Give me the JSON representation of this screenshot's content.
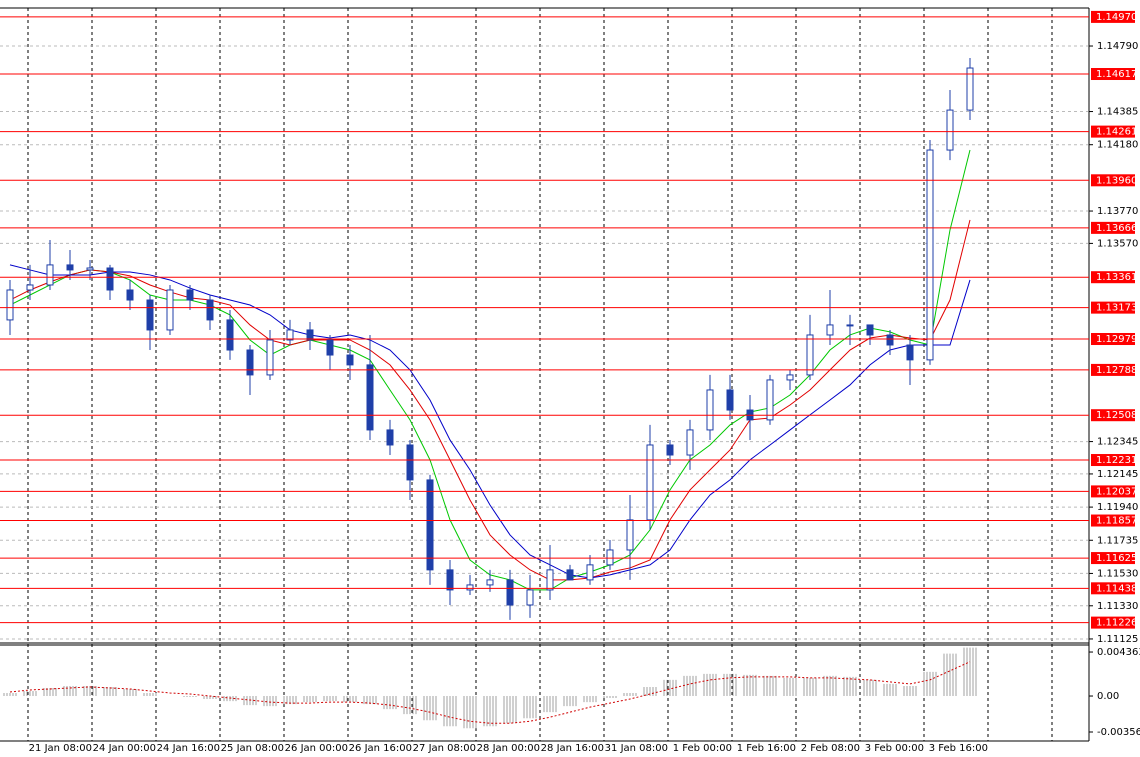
{
  "chart_data": {
    "type": "candlestick",
    "candle_color": "#1f3fa8",
    "ylim": [
      1.111,
      1.15025
    ],
    "yticks": [
      {
        "value": 1.1479,
        "label": "1.14790"
      },
      1.14385,
      {
        "value": 1.1418,
        "label": "1.14180"
      },
      {
        "value": 1.1377,
        "label": "1.13770"
      },
      {
        "value": 1.1357,
        "label": "1.13570"
      },
      1.12345,
      1.12145,
      {
        "value": 1.1194,
        "label": "1.11940"
      },
      1.11735,
      {
        "value": 1.1153,
        "label": "1.11530"
      },
      {
        "value": 1.1133,
        "label": "1.11330"
      },
      1.11125
    ],
    "grid": true,
    "level_color": "#ff0000",
    "levels": [
      {
        "value": 1.1497,
        "label": "1.14970"
      },
      1.14617,
      1.14261,
      {
        "value": 1.1396,
        "label": "1.13960"
      },
      1.13666,
      1.13361,
      1.13173,
      1.12979,
      1.12788,
      1.12508,
      1.12231,
      1.12037,
      1.11857,
      1.11625,
      1.11438,
      1.11226
    ],
    "x_labels": [
      "21 Jan 08:00",
      "24 Jan 00:00",
      "24 Jan 16:00",
      "25 Jan 08:00",
      "26 Jan 00:00",
      "26 Jan 16:00",
      "27 Jan 08:00",
      "28 Jan 00:00",
      "28 Jan 16:00",
      "31 Jan 08:00",
      "1 Feb 00:00",
      "1 Feb 16:00",
      "2 Feb 08:00",
      "3 Feb 00:00",
      "3 Feb 16:00"
    ],
    "ohlc": [
      [
        1.13097,
        1.13344,
        1.13004,
        1.13282
      ],
      [
        1.13282,
        1.13437,
        1.1322,
        1.13313
      ],
      [
        1.13313,
        1.13591,
        1.13282,
        1.13437
      ],
      [
        1.13437,
        1.13529,
        1.13344,
        1.13406
      ],
      [
        1.13406,
        1.13467,
        1.13344,
        1.13418
      ],
      [
        1.13418,
        1.13437,
        1.1322,
        1.13282
      ],
      [
        1.13282,
        1.13344,
        1.13158,
        1.1322
      ],
      [
        1.1322,
        1.13251,
        1.12911,
        1.13035
      ],
      [
        1.13035,
        1.13313,
        1.13004,
        1.13282
      ],
      [
        1.13282,
        1.13313,
        1.13158,
        1.1322
      ],
      [
        1.1322,
        1.13251,
        1.13035,
        1.13097
      ],
      [
        1.13097,
        1.13158,
        1.1285,
        1.12911
      ],
      [
        1.12911,
        1.12942,
        1.12633,
        1.12757
      ],
      [
        1.12757,
        1.13035,
        1.12726,
        1.12973
      ],
      [
        1.12973,
        1.13097,
        1.12942,
        1.13035
      ],
      [
        1.13035,
        1.13084,
        1.12911,
        1.12973
      ],
      [
        1.12973,
        1.13004,
        1.12788,
        1.1288
      ],
      [
        1.1288,
        1.12942,
        1.12726,
        1.12819
      ],
      [
        1.12819,
        1.13004,
        1.12355,
        1.12417
      ],
      [
        1.12417,
        1.12479,
        1.12262,
        1.12324
      ],
      [
        1.12324,
        1.12355,
        1.11984,
        1.12108
      ],
      [
        1.12108,
        1.12139,
        1.11459,
        1.11552
      ],
      [
        1.11552,
        1.11613,
        1.11335,
        1.11428
      ],
      [
        1.11428,
        1.11521,
        1.11397,
        1.11459
      ],
      [
        1.11459,
        1.11552,
        1.11416,
        1.1149
      ],
      [
        1.1149,
        1.11552,
        1.11243,
        1.11335
      ],
      [
        1.11335,
        1.11521,
        1.11255,
        1.11428
      ],
      [
        1.11428,
        1.11706,
        1.11366,
        1.11552
      ],
      [
        1.11552,
        1.11583,
        1.1149,
        1.1149
      ],
      [
        1.1149,
        1.11644,
        1.11459,
        1.11583
      ],
      [
        1.11583,
        1.11737,
        1.11552,
        1.11675
      ],
      [
        1.11675,
        1.12015,
        1.1149,
        1.11861
      ],
      [
        1.11861,
        1.12448,
        1.11799,
        1.12324
      ],
      [
        1.12324,
        1.12355,
        1.122,
        1.12262
      ],
      [
        1.12262,
        1.12479,
        1.1217,
        1.12417
      ],
      [
        1.12417,
        1.12757,
        1.12355,
        1.12664
      ],
      [
        1.12664,
        1.12757,
        1.12479,
        1.1254
      ],
      [
        1.1254,
        1.12633,
        1.12355,
        1.12479
      ],
      [
        1.12479,
        1.12757,
        1.12448,
        1.12726
      ],
      [
        1.12726,
        1.12788,
        1.12664,
        1.12757
      ],
      [
        1.12757,
        1.13128,
        1.12726,
        1.13004
      ],
      [
        1.13004,
        1.13282,
        1.12942,
        1.13066
      ],
      [
        1.13066,
        1.13128,
        1.12942,
        1.13066
      ],
      [
        1.13066,
        1.13066,
        1.12942,
        1.13004
      ],
      [
        1.13004,
        1.13035,
        1.1288,
        1.12942
      ],
      [
        1.12942,
        1.13004,
        1.12695,
        1.1285
      ],
      [
        1.1285,
        1.14209,
        1.12819,
        1.14147
      ],
      [
        1.14147,
        1.14518,
        1.14085,
        1.14394
      ],
      [
        1.14394,
        1.14716,
        1.14333,
        1.14654
      ]
    ],
    "series": [
      {
        "color": "#00c800",
        "values": [
          1.13189,
          1.13251,
          1.13313,
          1.13375,
          1.13406,
          1.13393,
          1.13344,
          1.13251,
          1.1322,
          1.1322,
          1.13189,
          1.13128,
          1.12973,
          1.1288,
          1.12942,
          1.12973,
          1.12942,
          1.12911,
          1.1285,
          1.12664,
          1.12479,
          1.12232,
          1.11861,
          1.11613,
          1.11521,
          1.1149,
          1.11428,
          1.11428,
          1.11502,
          1.11539,
          1.11583,
          1.11644,
          1.11799,
          1.12046,
          1.12232,
          1.12324,
          1.12448,
          1.12528,
          1.12553,
          1.12633,
          1.12757,
          1.12911,
          1.13004,
          1.13047,
          1.13023,
          1.12973,
          1.12942,
          1.13653,
          1.14147
        ]
      },
      {
        "color": "#e00000",
        "values": [
          1.1322,
          1.13282,
          1.13332,
          1.13375,
          1.13406,
          1.13393,
          1.13369,
          1.13313,
          1.1327,
          1.13233,
          1.1322,
          1.13189,
          1.13066,
          1.12973,
          1.12942,
          1.12973,
          1.12973,
          1.12973,
          1.12911,
          1.12819,
          1.12664,
          1.12479,
          1.12232,
          1.11984,
          1.11768,
          1.11644,
          1.11552,
          1.1149,
          1.1149,
          1.11502,
          1.11539,
          1.11564,
          1.11613,
          1.11861,
          1.12046,
          1.1217,
          1.12293,
          1.12479,
          1.12491,
          1.12571,
          1.12664,
          1.12788,
          1.12911,
          1.12985,
          1.13004,
          1.12985,
          1.12973,
          1.1322,
          1.13715
        ]
      },
      {
        "color": "#0000c8",
        "values": [
          1.13437,
          1.13406,
          1.13375,
          1.13375,
          1.13375,
          1.13393,
          1.13393,
          1.13375,
          1.13344,
          1.13294,
          1.13251,
          1.1322,
          1.13189,
          1.13128,
          1.13035,
          1.13004,
          1.12985,
          1.13004,
          1.12973,
          1.12911,
          1.12788,
          1.12602,
          1.12355,
          1.1217,
          1.11953,
          1.11768,
          1.11644,
          1.11583,
          1.11521,
          1.11502,
          1.11521,
          1.11552,
          1.11583,
          1.11675,
          1.11861,
          1.12015,
          1.12108,
          1.12232,
          1.12324,
          1.12417,
          1.1251,
          1.12602,
          1.12695,
          1.12819,
          1.12911,
          1.12942,
          1.12942,
          1.12942,
          1.13344
        ]
      }
    ],
    "indicator": {
      "type": "histogram",
      "color": "#a0a0a0",
      "ylim": [
        -0.00446,
        0.00506
      ],
      "yticks": [
        0.004363,
        {
          "value": 0,
          "label": "0.00"
        },
        -0.003568
      ],
      "values": [
        0.0003,
        0.0005,
        0.0008,
        0.001,
        0.001,
        0.0009,
        0.0007,
        0.0003,
        0,
        -0.0001,
        -0.0003,
        -0.0005,
        -0.0009,
        -0.001,
        -0.0008,
        -0.0006,
        -0.0005,
        -0.0006,
        -0.0008,
        -0.0013,
        -0.0018,
        -0.0024,
        -0.003,
        -0.0032,
        -0.003,
        -0.0027,
        -0.0022,
        -0.0016,
        -0.001,
        -0.0006,
        -0.0002,
        0.0003,
        0.0009,
        0.0016,
        0.002,
        0.0022,
        0.0022,
        0.0021,
        0.002,
        0.0018,
        0.0018,
        0.002,
        0.0019,
        0.0016,
        0.0012,
        0.001,
        0.0024,
        0.0042,
        0.0048
      ],
      "signal": {
        "color": "#d00000",
        "values": [
          0.0004,
          0.0006,
          0.0007,
          0.0008,
          0.0009,
          0.0008,
          0.0007,
          0.0005,
          0.0003,
          0.0002,
          0,
          -0.0002,
          -0.0004,
          -0.0006,
          -0.0007,
          -0.0007,
          -0.0006,
          -0.0006,
          -0.0007,
          -0.0009,
          -0.0012,
          -0.0016,
          -0.0021,
          -0.0025,
          -0.0027,
          -0.0027,
          -0.0025,
          -0.0021,
          -0.0016,
          -0.0011,
          -0.0007,
          -0.0003,
          0.0002,
          0.0007,
          0.0012,
          0.0016,
          0.0018,
          0.0019,
          0.0019,
          0.0019,
          0.0018,
          0.0018,
          0.0017,
          0.0016,
          0.0014,
          0.0012,
          0.0016,
          0.0025,
          0.0034
        ]
      }
    }
  }
}
